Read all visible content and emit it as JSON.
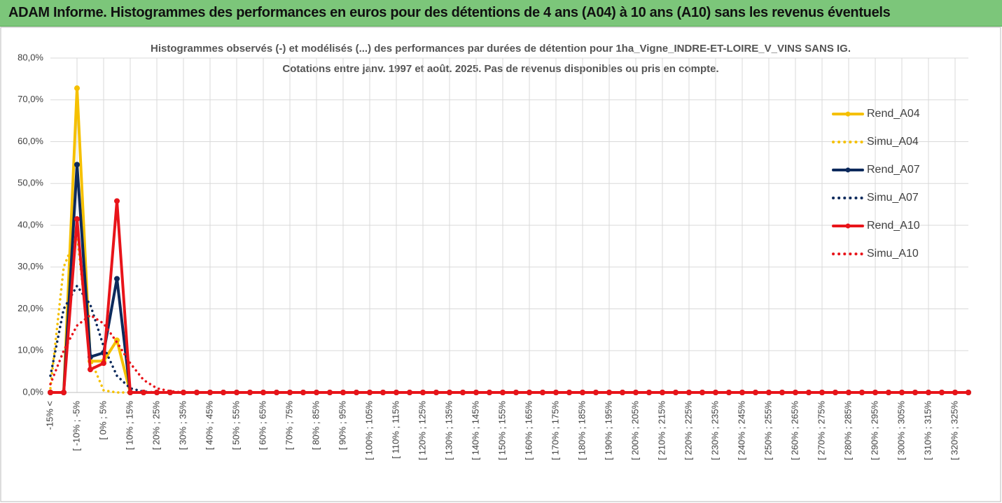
{
  "header": {
    "title": "ADAM Informe. Histogrammes des performances en euros pour des détentions de 4 ans (A04) à 10 ans (A10) sans les revenus éventuels"
  },
  "chart_data": {
    "type": "line",
    "title": [
      "Histogrammes observés (-) et modélisés (...) des performances par durées de détention pour 1ha_Vigne_INDRE-ET-LOIRE_V_VINS SANS IG.",
      "Cotations entre janv. 1997 et août. 2025. Pas de revenus disponibles ou pris en compte."
    ],
    "categories": [
      "-15% <",
      null,
      "[ -10% ; -5%",
      null,
      "[ 0% ; 5%",
      null,
      "[ 10% ; 15%",
      null,
      "[ 20% ; 25%",
      null,
      "[ 30% ; 35%",
      null,
      "[ 40% ; 45%",
      null,
      "[ 50% ; 55%",
      null,
      "[ 60% ; 65%",
      null,
      "[ 70% ; 75%",
      null,
      "[ 80% ; 85%",
      null,
      "[ 90% ; 95%",
      null,
      "[ 100% ; 105%",
      null,
      "[ 110% ; 115%",
      null,
      "[ 120% ; 125%",
      null,
      "[ 130% ; 135%",
      null,
      "[ 140% ; 145%",
      null,
      "[ 150% ; 155%",
      null,
      "[ 160% ; 165%",
      null,
      "[ 170% ; 175%",
      null,
      "[ 180% ; 185%",
      null,
      "[ 190% ; 195%",
      null,
      "[ 200% ; 205%",
      null,
      "[ 210% ; 215%",
      null,
      "[ 220% ; 225%",
      null,
      "[ 230% ; 235%",
      null,
      "[ 240% ; 245%",
      null,
      "[ 250% ; 255%",
      null,
      "[ 260% ; 265%",
      null,
      "[ 270% ; 275%",
      null,
      "[ 280% ; 285%",
      null,
      "[ 290% ; 295%",
      null,
      "[ 300% ; 305%",
      null,
      "[ 310% ; 315%",
      null,
      "[ 320% ; 325%",
      null
    ],
    "series": [
      {
        "name": "Rend_A04",
        "color": "#f5c000",
        "style": "solid",
        "values": [
          0,
          0,
          72.8,
          7.5,
          7.5,
          12.5,
          0,
          0,
          0,
          0,
          0,
          0,
          0,
          0,
          0,
          0,
          0,
          0,
          0,
          0,
          0,
          0,
          0,
          0,
          0,
          0,
          0,
          0,
          0,
          0,
          0,
          0,
          0,
          0,
          0,
          0,
          0,
          0,
          0,
          0,
          0,
          0,
          0,
          0,
          0,
          0,
          0,
          0,
          0,
          0,
          0,
          0,
          0,
          0,
          0,
          0,
          0,
          0,
          0,
          0,
          0,
          0,
          0,
          0,
          0,
          0,
          0,
          0,
          0,
          0
        ]
      },
      {
        "name": "Simu_A04",
        "color": "#f5c000",
        "style": "dotted",
        "values": [
          1,
          30,
          38,
          8,
          0.5,
          0,
          0,
          0,
          0,
          0,
          0,
          0,
          0,
          0,
          0,
          0,
          0,
          0,
          0,
          0,
          0,
          0,
          0,
          0,
          0,
          0,
          0,
          0,
          0,
          0,
          0,
          0,
          0,
          0,
          0,
          0,
          0,
          0,
          0,
          0,
          0,
          0,
          0,
          0,
          0,
          0,
          0,
          0,
          0,
          0,
          0,
          0,
          0,
          0,
          0,
          0,
          0,
          0,
          0,
          0,
          0,
          0,
          0,
          0,
          0,
          0,
          0,
          0,
          0,
          0
        ]
      },
      {
        "name": "Rend_A07",
        "color": "#0d2a5c",
        "style": "solid",
        "values": [
          0,
          0,
          54.5,
          8.5,
          9.5,
          27.2,
          0,
          0,
          0,
          0,
          0,
          0,
          0,
          0,
          0,
          0,
          0,
          0,
          0,
          0,
          0,
          0,
          0,
          0,
          0,
          0,
          0,
          0,
          0,
          0,
          0,
          0,
          0,
          0,
          0,
          0,
          0,
          0,
          0,
          0,
          0,
          0,
          0,
          0,
          0,
          0,
          0,
          0,
          0,
          0,
          0,
          0,
          0,
          0,
          0,
          0,
          0,
          0,
          0,
          0,
          0,
          0,
          0,
          0,
          0,
          0,
          0,
          0,
          0,
          0
        ]
      },
      {
        "name": "Simu_A07",
        "color": "#0d2a5c",
        "style": "dotted",
        "values": [
          4,
          20,
          25.5,
          21,
          11,
          4,
          1,
          0.2,
          0,
          0,
          0,
          0,
          0,
          0,
          0,
          0,
          0,
          0,
          0,
          0,
          0,
          0,
          0,
          0,
          0,
          0,
          0,
          0,
          0,
          0,
          0,
          0,
          0,
          0,
          0,
          0,
          0,
          0,
          0,
          0,
          0,
          0,
          0,
          0,
          0,
          0,
          0,
          0,
          0,
          0,
          0,
          0,
          0,
          0,
          0,
          0,
          0,
          0,
          0,
          0,
          0,
          0,
          0,
          0,
          0,
          0,
          0,
          0,
          0,
          0
        ]
      },
      {
        "name": "Rend_A10",
        "color": "#e8141a",
        "style": "solid",
        "values": [
          0,
          0,
          41.5,
          5.5,
          7,
          45.8,
          0,
          0,
          0,
          0,
          0,
          0,
          0,
          0,
          0,
          0,
          0,
          0,
          0,
          0,
          0,
          0,
          0,
          0,
          0,
          0,
          0,
          0,
          0,
          0,
          0,
          0,
          0,
          0,
          0,
          0,
          0,
          0,
          0,
          0,
          0,
          0,
          0,
          0,
          0,
          0,
          0,
          0,
          0,
          0,
          0,
          0,
          0,
          0,
          0,
          0,
          0,
          0,
          0,
          0,
          0,
          0,
          0,
          0,
          0,
          0,
          0,
          0,
          0,
          0
        ]
      },
      {
        "name": "Simu_A10",
        "color": "#e8141a",
        "style": "dotted",
        "values": [
          2,
          10,
          16,
          18.5,
          16.5,
          12,
          7,
          3,
          1,
          0.3,
          0,
          0,
          0,
          0,
          0,
          0,
          0,
          0,
          0,
          0,
          0,
          0,
          0,
          0,
          0,
          0,
          0,
          0,
          0,
          0,
          0,
          0,
          0,
          0,
          0,
          0,
          0,
          0,
          0,
          0,
          0,
          0,
          0,
          0,
          0,
          0,
          0,
          0,
          0,
          0,
          0,
          0,
          0,
          0,
          0,
          0,
          0,
          0,
          0,
          0,
          0,
          0,
          0,
          0,
          0,
          0,
          0,
          0,
          0,
          0
        ]
      }
    ],
    "ylim": [
      0,
      80
    ],
    "yticks": [
      {
        "value": 0,
        "label": "0,0%"
      },
      {
        "value": 10,
        "label": "10,0%"
      },
      {
        "value": 20,
        "label": "20,0%"
      },
      {
        "value": 30,
        "label": "30,0%"
      },
      {
        "value": 40,
        "label": "40,0%"
      },
      {
        "value": 50,
        "label": "50,0%"
      },
      {
        "value": 60,
        "label": "60,0%"
      },
      {
        "value": 70,
        "label": "70,0%"
      },
      {
        "value": 80,
        "label": "80,0%"
      }
    ],
    "grid": true,
    "legend": "right"
  }
}
